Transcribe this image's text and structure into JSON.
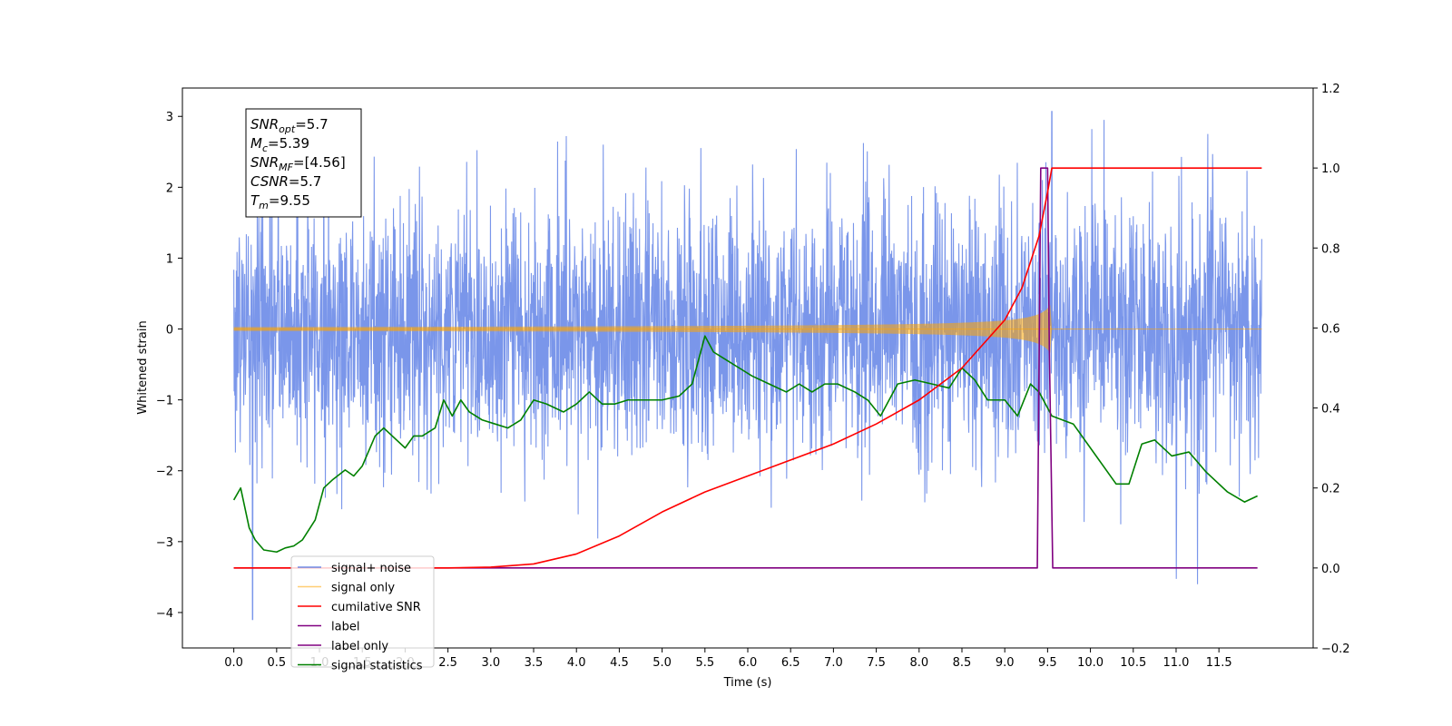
{
  "chart_data": {
    "type": "line",
    "title": "",
    "xlabel": "Time (s)",
    "ylabel": "Whitened strain",
    "y2label": "",
    "xlim": [
      -0.6,
      12.6
    ],
    "ylim": [
      -4.5,
      3.4
    ],
    "y2lim": [
      -0.2,
      1.2
    ],
    "x_ticks": [
      "0.0",
      "0.5",
      "1.0",
      "1.5",
      "2.0",
      "2.5",
      "3.0",
      "3.5",
      "4.0",
      "4.5",
      "5.0",
      "5.5",
      "6.0",
      "6.5",
      "7.0",
      "7.5",
      "8.0",
      "8.5",
      "9.0",
      "9.5",
      "10.0",
      "10.5",
      "11.0",
      "11.5"
    ],
    "y_ticks": [
      "3",
      "2",
      "1",
      "0",
      "−1",
      "−2",
      "−3",
      "−4"
    ],
    "y2_ticks": [
      "1.2",
      "1.0",
      "0.8",
      "0.6",
      "0.4",
      "0.2",
      "0.0",
      "−0.2"
    ],
    "grid": false,
    "legend_position": "lower-left",
    "annotation": {
      "snr_opt": {
        "sym": "SNR",
        "sub": "opt",
        "val": "=5.7"
      },
      "mc": {
        "sym": "M",
        "sub": "c",
        "val": "=5.39"
      },
      "snr_mf": {
        "sym": "SNR",
        "sub": "MF",
        "val": "=[4.56]"
      },
      "csnr": {
        "sym": "CSNR",
        "sub": "",
        "val": "=5.7"
      },
      "tm": {
        "sym": "T",
        "sub": "m",
        "val": "=9.55"
      }
    },
    "series": [
      {
        "name": "signal+ noise",
        "axis": "left",
        "color": "#4169e1",
        "style": "noise",
        "x_range": [
          0.0,
          12.0
        ],
        "band_upper_approx": 2.0,
        "band_lower_approx": -2.0,
        "max_peak": [
          9.55,
          3.07
        ],
        "min_peak": [
          0.22,
          -4.1
        ]
      },
      {
        "name": "signal only",
        "axis": "left",
        "color": "#ffa500",
        "style": "chirp",
        "x_range": [
          0.0,
          12.0
        ],
        "merger_time": 9.55,
        "peak_amplitude": 0.38
      },
      {
        "name": "cumilative SNR",
        "axis": "right",
        "color": "#ff0000",
        "x": [
          0.0,
          2.5,
          3.0,
          3.5,
          4.0,
          4.5,
          5.0,
          5.5,
          6.0,
          6.5,
          7.0,
          7.5,
          8.0,
          8.5,
          9.0,
          9.2,
          9.4,
          9.5,
          9.55,
          12.0
        ],
        "y": [
          0.0,
          0.0,
          0.002,
          0.01,
          0.035,
          0.08,
          0.14,
          0.19,
          0.23,
          0.27,
          0.31,
          0.36,
          0.42,
          0.5,
          0.62,
          0.7,
          0.83,
          0.94,
          1.0,
          1.0
        ]
      },
      {
        "name": "label",
        "axis": "right",
        "color": "#800080",
        "x": [
          0.0,
          9.38,
          9.42,
          9.5,
          9.52,
          9.56,
          11.95
        ],
        "y": [
          0.0,
          0.0,
          1.0,
          1.0,
          0.55,
          0.0,
          0.0
        ]
      },
      {
        "name": "label only",
        "axis": "right",
        "color": "#800080",
        "hidden_in_plot": true,
        "x": [],
        "y": []
      },
      {
        "name": "signal statistics",
        "axis": "right",
        "color": "#008000",
        "x": [
          0.0,
          0.08,
          0.18,
          0.25,
          0.35,
          0.5,
          0.6,
          0.7,
          0.8,
          0.95,
          1.05,
          1.15,
          1.3,
          1.4,
          1.5,
          1.65,
          1.75,
          1.85,
          2.0,
          2.1,
          2.2,
          2.35,
          2.45,
          2.55,
          2.65,
          2.75,
          2.9,
          3.05,
          3.2,
          3.35,
          3.5,
          3.65,
          3.85,
          4.0,
          4.15,
          4.3,
          4.45,
          4.6,
          4.8,
          5.0,
          5.2,
          5.35,
          5.5,
          5.6,
          5.75,
          5.9,
          6.05,
          6.25,
          6.45,
          6.6,
          6.75,
          6.9,
          7.05,
          7.25,
          7.4,
          7.55,
          7.75,
          7.95,
          8.15,
          8.35,
          8.5,
          8.65,
          8.8,
          9.0,
          9.15,
          9.3,
          9.4,
          9.55,
          9.8,
          10.1,
          10.3,
          10.45,
          10.6,
          10.75,
          10.95,
          11.15,
          11.35,
          11.6,
          11.8,
          11.95
        ],
        "y": [
          0.17,
          0.2,
          0.1,
          0.07,
          0.045,
          0.04,
          0.05,
          0.055,
          0.07,
          0.12,
          0.2,
          0.22,
          0.245,
          0.23,
          0.255,
          0.33,
          0.35,
          0.33,
          0.3,
          0.33,
          0.33,
          0.35,
          0.42,
          0.38,
          0.42,
          0.39,
          0.37,
          0.36,
          0.35,
          0.37,
          0.42,
          0.41,
          0.39,
          0.41,
          0.44,
          0.41,
          0.41,
          0.42,
          0.42,
          0.42,
          0.43,
          0.46,
          0.58,
          0.54,
          0.52,
          0.5,
          0.48,
          0.46,
          0.44,
          0.46,
          0.44,
          0.46,
          0.46,
          0.44,
          0.42,
          0.38,
          0.46,
          0.47,
          0.46,
          0.45,
          0.5,
          0.47,
          0.42,
          0.42,
          0.38,
          0.46,
          0.44,
          0.38,
          0.36,
          0.27,
          0.21,
          0.21,
          0.31,
          0.32,
          0.28,
          0.29,
          0.24,
          0.19,
          0.165,
          0.18
        ]
      }
    ]
  }
}
